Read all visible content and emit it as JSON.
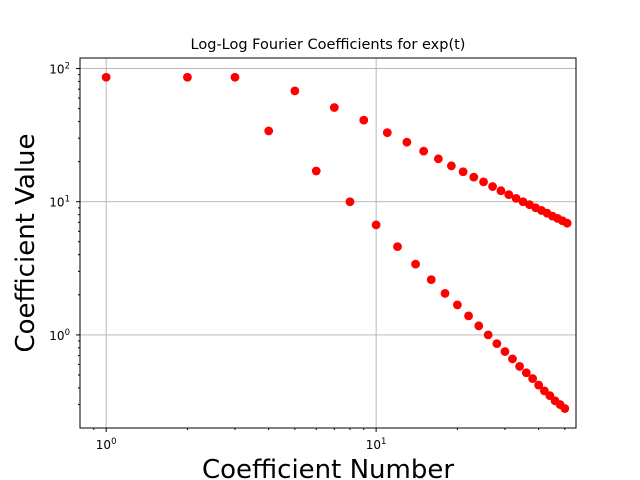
{
  "chart_data": {
    "type": "scatter",
    "title": "Log-Log Fourier Coefficients for exp(t)",
    "xlabel": "Coefficient Number",
    "ylabel": "Coefficient Value",
    "xscale": "log",
    "yscale": "log",
    "xlim": [
      0.8,
      55
    ],
    "ylim": [
      0.2,
      120
    ],
    "grid": true,
    "marker_color": "#ff0000",
    "x_ticks": [
      {
        "value": 1,
        "base": "10",
        "exp": "0"
      },
      {
        "value": 10,
        "base": "10",
        "exp": "1"
      }
    ],
    "y_ticks": [
      {
        "value": 1,
        "base": "10",
        "exp": "0"
      },
      {
        "value": 10,
        "base": "10",
        "exp": "1"
      },
      {
        "value": 100,
        "base": "10",
        "exp": "2"
      }
    ],
    "points": [
      {
        "x": 1,
        "y": 86
      },
      {
        "x": 2,
        "y": 86
      },
      {
        "x": 3,
        "y": 86
      },
      {
        "x": 4,
        "y": 34
      },
      {
        "x": 5,
        "y": 68
      },
      {
        "x": 6,
        "y": 17
      },
      {
        "x": 7,
        "y": 51
      },
      {
        "x": 8,
        "y": 10
      },
      {
        "x": 9,
        "y": 41
      },
      {
        "x": 10,
        "y": 6.7
      },
      {
        "x": 11,
        "y": 33
      },
      {
        "x": 12,
        "y": 4.6
      },
      {
        "x": 13,
        "y": 28
      },
      {
        "x": 14,
        "y": 3.4
      },
      {
        "x": 15,
        "y": 24
      },
      {
        "x": 16,
        "y": 2.6
      },
      {
        "x": 17,
        "y": 21
      },
      {
        "x": 18,
        "y": 2.05
      },
      {
        "x": 19,
        "y": 18.6
      },
      {
        "x": 20,
        "y": 1.68
      },
      {
        "x": 21,
        "y": 16.8
      },
      {
        "x": 22,
        "y": 1.39
      },
      {
        "x": 23,
        "y": 15.3
      },
      {
        "x": 24,
        "y": 1.17
      },
      {
        "x": 25,
        "y": 14.1
      },
      {
        "x": 26,
        "y": 1.0
      },
      {
        "x": 27,
        "y": 13.0
      },
      {
        "x": 28,
        "y": 0.86
      },
      {
        "x": 29,
        "y": 12.1
      },
      {
        "x": 30,
        "y": 0.75
      },
      {
        "x": 31,
        "y": 11.3
      },
      {
        "x": 32,
        "y": 0.66
      },
      {
        "x": 33,
        "y": 10.6
      },
      {
        "x": 34,
        "y": 0.58
      },
      {
        "x": 35,
        "y": 10.0
      },
      {
        "x": 36,
        "y": 0.52
      },
      {
        "x": 37,
        "y": 9.5
      },
      {
        "x": 38,
        "y": 0.47
      },
      {
        "x": 39,
        "y": 9.0
      },
      {
        "x": 40,
        "y": 0.42
      },
      {
        "x": 41,
        "y": 8.6
      },
      {
        "x": 42,
        "y": 0.38
      },
      {
        "x": 43,
        "y": 8.2
      },
      {
        "x": 44,
        "y": 0.35
      },
      {
        "x": 45,
        "y": 7.8
      },
      {
        "x": 46,
        "y": 0.32
      },
      {
        "x": 47,
        "y": 7.5
      },
      {
        "x": 48,
        "y": 0.3
      },
      {
        "x": 49,
        "y": 7.2
      },
      {
        "x": 50,
        "y": 0.28
      },
      {
        "x": 51,
        "y": 6.9
      }
    ]
  }
}
